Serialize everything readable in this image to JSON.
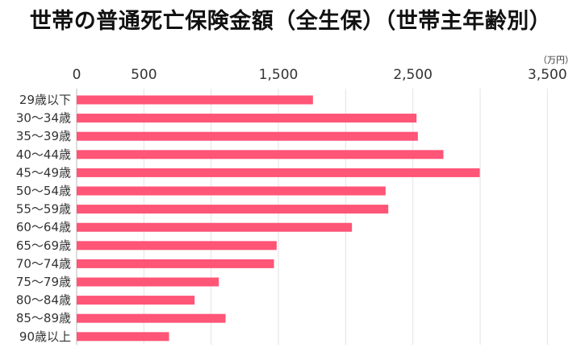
{
  "chart_data": {
    "type": "bar",
    "orientation": "horizontal",
    "title": "世帯の普通死亡保険金額（全生保）（世帯主年齢別）",
    "unit_label": "（万円）",
    "x_ticks": [
      "0",
      "500",
      "1,500",
      "2,500",
      "3,500"
    ],
    "x_tick_values": [
      0,
      500,
      1500,
      2500,
      3500
    ],
    "xlim": [
      0,
      3700
    ],
    "grid": true,
    "bar_color": "#ff5577",
    "categories": [
      "29歳以下",
      "30～34歳",
      "35～39歳",
      "40～44歳",
      "45～49歳",
      "50～54歳",
      "55～59歳",
      "60～64歳",
      "65～69歳",
      "70～74歳",
      "75～79歳",
      "80～84歳",
      "85～89歳",
      "90歳以上"
    ],
    "values": [
      1757,
      2527,
      2537,
      2727,
      2997,
      2297,
      2317,
      2047,
      1487,
      1467,
      1057,
      877,
      1107,
      687
    ]
  }
}
